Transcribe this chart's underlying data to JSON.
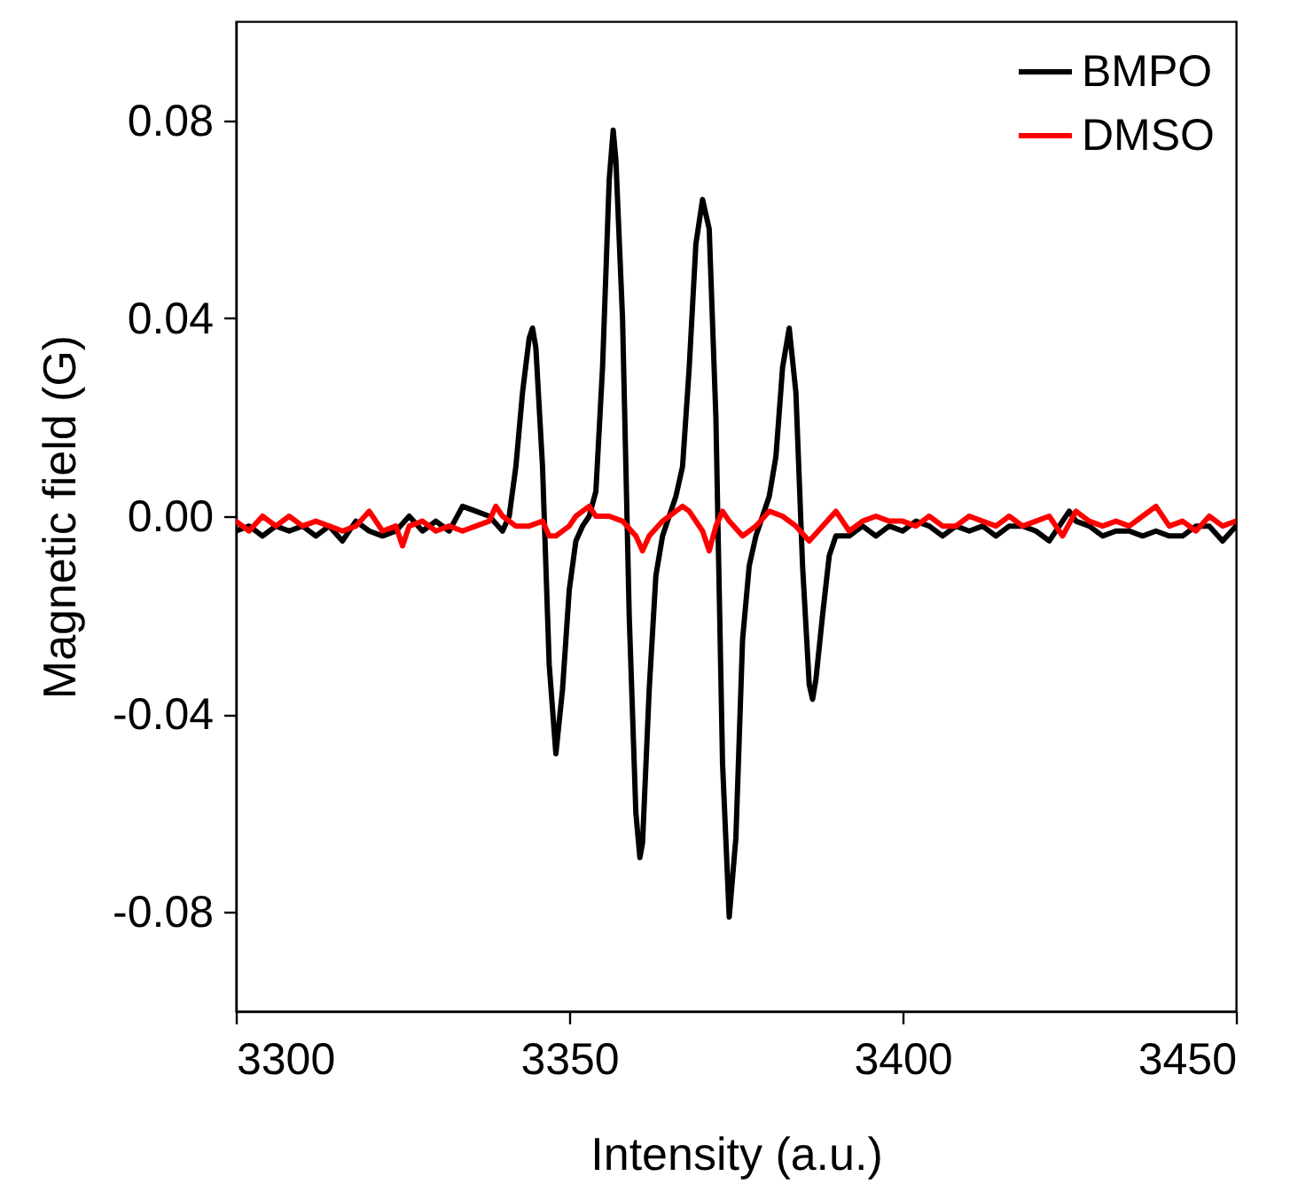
{
  "chart_data": {
    "type": "line",
    "xlabel": "Intensity (a.u.)",
    "ylabel": "Magnetic field (G)",
    "xlim": [
      3300,
      3450
    ],
    "ylim": [
      -0.1,
      0.1
    ],
    "xticks": [
      3300,
      3350,
      3400,
      3450
    ],
    "yticks": [
      -0.08,
      -0.04,
      {
        "value": 0,
        "label": "0.00"
      },
      0.04,
      0.08
    ],
    "legend": "top right",
    "grid": false,
    "line_style": "solid",
    "series": [
      {
        "name": "BMPO",
        "color": "#000000",
        "x": [
          3300,
          3302,
          3304,
          3306,
          3308,
          3310,
          3312,
          3314,
          3316,
          3318,
          3320,
          3322,
          3324,
          3326,
          3328,
          3330,
          3332,
          3334,
          3336,
          3338,
          3340,
          3341,
          3342,
          3343,
          3344,
          3344.5,
          3345,
          3346,
          3347,
          3348,
          3349,
          3350,
          3351,
          3352,
          3353,
          3354,
          3355,
          3356,
          3356.6,
          3357,
          3358,
          3359,
          3360,
          3360.6,
          3361,
          3362,
          3363,
          3364,
          3365,
          3366,
          3367,
          3368,
          3369,
          3370,
          3371,
          3372,
          3373,
          3374,
          3375,
          3376,
          3377,
          3378,
          3379,
          3380,
          3381,
          3382,
          3383,
          3384,
          3385,
          3386,
          3386.5,
          3387,
          3388,
          3389,
          3390,
          3392,
          3394,
          3396,
          3398,
          3400,
          3402,
          3404,
          3406,
          3408,
          3410,
          3412,
          3414,
          3416,
          3418,
          3420,
          3422,
          3424,
          3425,
          3426,
          3428,
          3430,
          3432,
          3434,
          3436,
          3438,
          3440,
          3442,
          3444,
          3446,
          3448,
          3450
        ],
        "values": [
          -0.003,
          -0.002,
          -0.004,
          -0.002,
          -0.003,
          -0.002,
          -0.004,
          -0.002,
          -0.005,
          -0.001,
          -0.003,
          -0.004,
          -0.003,
          0.0,
          -0.003,
          -0.001,
          -0.003,
          0.002,
          0.001,
          0.0,
          -0.003,
          0.0,
          0.01,
          0.025,
          0.036,
          0.038,
          0.034,
          0.01,
          -0.03,
          -0.048,
          -0.035,
          -0.015,
          -0.005,
          -0.002,
          0.0,
          0.005,
          0.03,
          0.068,
          0.078,
          0.072,
          0.04,
          -0.02,
          -0.06,
          -0.069,
          -0.066,
          -0.035,
          -0.012,
          -0.004,
          0.0,
          0.004,
          0.01,
          0.03,
          0.055,
          0.064,
          0.058,
          0.02,
          -0.05,
          -0.081,
          -0.065,
          -0.025,
          -0.01,
          -0.004,
          0.0,
          0.004,
          0.012,
          0.03,
          0.038,
          0.025,
          -0.01,
          -0.034,
          -0.037,
          -0.033,
          -0.02,
          -0.008,
          -0.004,
          -0.004,
          -0.002,
          -0.004,
          -0.002,
          -0.003,
          -0.001,
          -0.002,
          -0.004,
          -0.002,
          -0.003,
          -0.002,
          -0.004,
          -0.002,
          -0.002,
          -0.003,
          -0.005,
          -0.001,
          0.001,
          -0.001,
          -0.002,
          -0.004,
          -0.003,
          -0.003,
          -0.004,
          -0.003,
          -0.004,
          -0.004,
          -0.002,
          -0.002,
          -0.005,
          -0.002
        ]
      },
      {
        "name": "DMSO",
        "color": "#ff0000",
        "x": [
          3300,
          3302,
          3304,
          3306,
          3308,
          3310,
          3312,
          3314,
          3316,
          3318,
          3320,
          3322,
          3324,
          3325,
          3326,
          3328,
          3330,
          3332,
          3334,
          3336,
          3338,
          3339,
          3340,
          3342,
          3344,
          3346,
          3347,
          3348,
          3350,
          3351,
          3352,
          3353,
          3354,
          3356,
          3358,
          3360,
          3361,
          3362,
          3364,
          3366,
          3367,
          3368,
          3370,
          3371,
          3372,
          3373,
          3374,
          3376,
          3378,
          3380,
          3382,
          3384,
          3386,
          3388,
          3390,
          3392,
          3394,
          3396,
          3398,
          3400,
          3402,
          3404,
          3406,
          3408,
          3410,
          3412,
          3414,
          3416,
          3418,
          3420,
          3422,
          3424,
          3426,
          3428,
          3430,
          3432,
          3434,
          3436,
          3438,
          3440,
          3442,
          3444,
          3446,
          3448,
          3450
        ],
        "values": [
          -0.001,
          -0.003,
          0.0,
          -0.002,
          0.0,
          -0.002,
          -0.001,
          -0.002,
          -0.003,
          -0.002,
          0.001,
          -0.003,
          -0.002,
          -0.006,
          -0.002,
          -0.001,
          -0.003,
          -0.002,
          -0.003,
          -0.002,
          -0.001,
          0.002,
          0.0,
          -0.002,
          -0.002,
          -0.001,
          -0.004,
          -0.004,
          -0.002,
          0.0,
          0.001,
          0.002,
          0.0,
          0.0,
          -0.001,
          -0.004,
          -0.007,
          -0.004,
          -0.001,
          0.001,
          0.002,
          0.001,
          -0.003,
          -0.007,
          -0.002,
          0.001,
          -0.001,
          -0.004,
          -0.002,
          0.001,
          0.0,
          -0.002,
          -0.005,
          -0.002,
          0.001,
          -0.003,
          -0.001,
          0.0,
          -0.001,
          -0.001,
          -0.002,
          0.0,
          -0.002,
          -0.002,
          0.0,
          -0.001,
          -0.002,
          0.0,
          -0.002,
          -0.001,
          0.0,
          -0.004,
          0.001,
          -0.001,
          -0.002,
          -0.001,
          -0.002,
          0.0,
          0.002,
          -0.002,
          -0.001,
          -0.003,
          0.0,
          -0.002,
          -0.001
        ]
      }
    ]
  }
}
